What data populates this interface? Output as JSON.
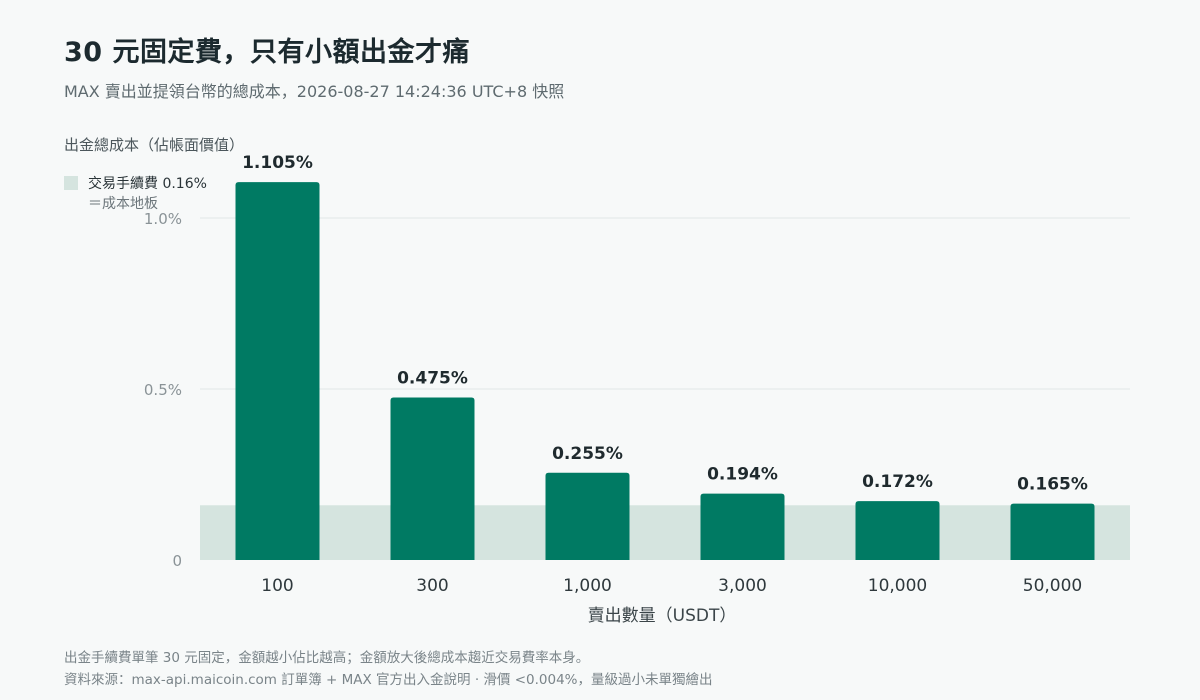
{
  "header": {
    "title": "30 元固定費，只有小額出金才痛",
    "subtitle": "MAX 賣出並提領台幣的總成本，2026-08-27 14:24:36 UTC+8 快照"
  },
  "chart_data": {
    "type": "bar",
    "title": "30 元固定費，只有小額出金才痛",
    "subtitle": "MAX 賣出並提領台幣的總成本，2026-08-27 14:24:36 UTC+8 快照",
    "ylabel": "出金總成本（佔帳面價值）",
    "xlabel": "賣出數量（USDT）",
    "categories": [
      "100",
      "300",
      "1,000",
      "3,000",
      "10,000",
      "50,000"
    ],
    "values": [
      1.105,
      0.475,
      0.255,
      0.194,
      0.172,
      0.165
    ],
    "value_labels": [
      "1.105%",
      "0.475%",
      "0.255%",
      "0.194%",
      "0.172%",
      "0.165%"
    ],
    "ylim": [
      0,
      1.2
    ],
    "yticks": [
      0,
      0.5,
      1.0
    ],
    "ytick_labels": [
      "0",
      "0.5%",
      "1.0%"
    ],
    "grid": true,
    "floor": {
      "value": 0.16,
      "legend_line1": "交易手續費 0.16%",
      "legend_line2": "＝成本地板"
    },
    "colors": {
      "bar": "#007a63",
      "floor_band": "#d5e4df",
      "grid": "#e2e7e8"
    }
  },
  "footer": {
    "note1": "出金手續費單筆 30 元固定，金額越小佔比越高；金額放大後總成本趨近交易費率本身。",
    "note2": "資料來源：max-api.maicoin.com 訂單簿 + MAX 官方出入金說明 · 滑價 <0.004%，量級過小未單獨繪出"
  }
}
